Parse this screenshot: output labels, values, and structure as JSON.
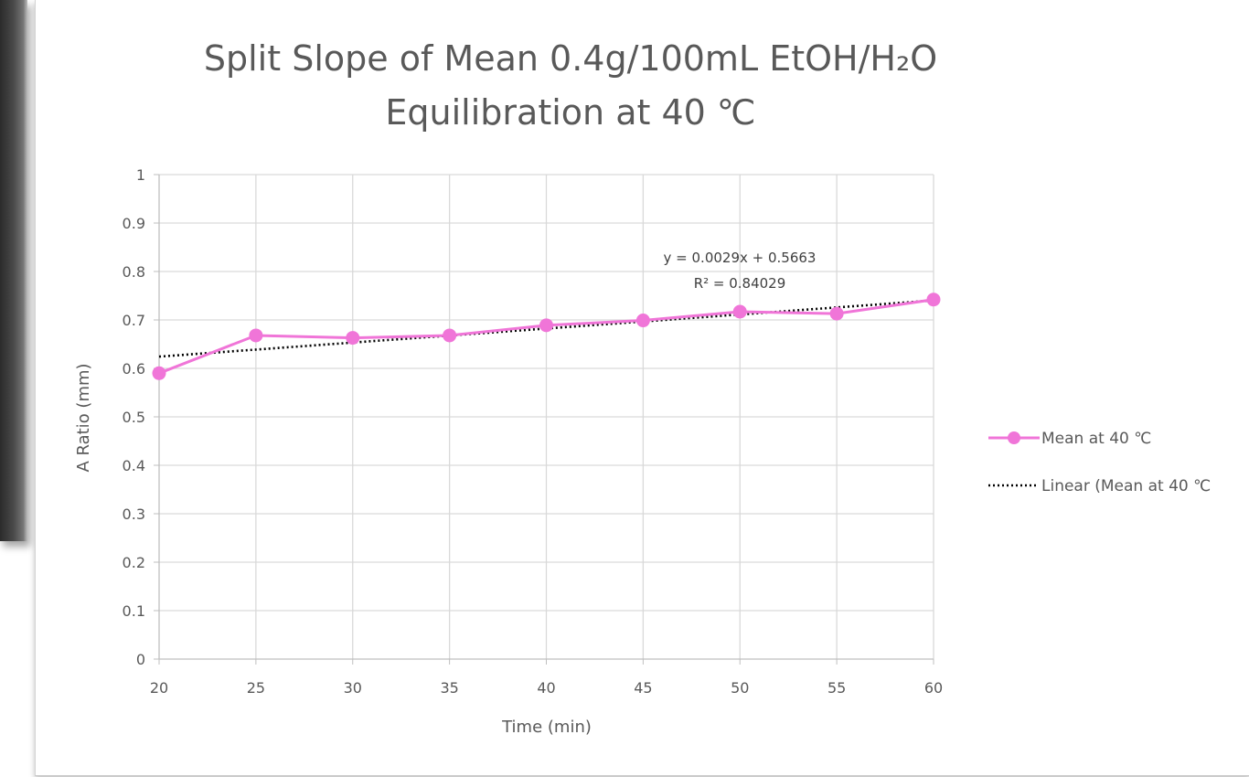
{
  "chart_data": {
    "type": "line",
    "title_line1": "Split Slope of Mean 0.4g/100mL EtOH/H₂O",
    "title_line2": "Equilibration at 40 ℃",
    "xlabel": "Time (min)",
    "ylabel": "A Ratio (mm)",
    "x": [
      20,
      25,
      30,
      35,
      40,
      45,
      50,
      55,
      60
    ],
    "xlim": [
      20,
      60
    ],
    "ylim": [
      0,
      1
    ],
    "x_ticks": [
      "20",
      "25",
      "30",
      "35",
      "40",
      "45",
      "50",
      "55",
      "60"
    ],
    "y_ticks": [
      "0",
      "0.1",
      "0.2",
      "0.3",
      "0.4",
      "0.5",
      "0.6",
      "0.7",
      "0.8",
      "0.9",
      "1"
    ],
    "grid": true,
    "legend_position": "right",
    "series": [
      {
        "name": "Mean at 40 ℃",
        "values": [
          0.59,
          0.668,
          0.663,
          0.668,
          0.689,
          0.699,
          0.717,
          0.713,
          0.742
        ],
        "color": "#f075d8",
        "marker": "circle"
      }
    ],
    "trendline": {
      "name": "Linear  (Mean at 40 ℃",
      "slope": 0.0029,
      "intercept": 0.5663,
      "equation": "y = 0.0029x + 0.5663",
      "r_squared": "R² = 0.84029",
      "color": "#000000",
      "style": "dotted"
    }
  }
}
